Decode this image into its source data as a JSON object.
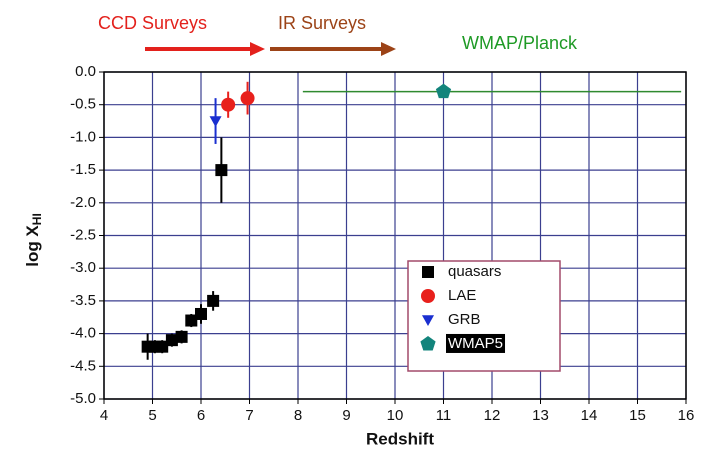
{
  "chart_data": {
    "type": "scatter",
    "xlabel": "Redshift",
    "ylabel": "log X",
    "ylabel_sub": "HI",
    "xlim": [
      4,
      16
    ],
    "xticks": [
      4,
      5,
      6,
      7,
      8,
      9,
      10,
      11,
      12,
      13,
      14,
      15,
      16
    ],
    "ylim": [
      -5,
      0
    ],
    "yticks": [
      {
        "value": 0,
        "label": "0.0"
      },
      -0.5,
      {
        "value": -1,
        "label": "-1.0"
      },
      -1.5,
      {
        "value": -2,
        "label": "-2.0"
      },
      -2.5,
      {
        "value": -3,
        "label": "-3.0"
      },
      -3.5,
      {
        "value": -4,
        "label": "-4.0"
      },
      -4.5,
      {
        "value": -5,
        "label": "-5.0"
      }
    ],
    "grid": true,
    "grid_color": "#3b3f8f",
    "annotations": [
      {
        "text": "CCD Surveys",
        "color": "#e3211c"
      },
      {
        "text": "IR Surveys",
        "color": "#9c4317"
      },
      {
        "text": "WMAP/Planck",
        "color": "#1e9a25"
      }
    ],
    "series": [
      {
        "name": "quasars",
        "color": "#000000",
        "marker": "square",
        "x": [
          4.9,
          5.05,
          5.2,
          5.4,
          5.6,
          5.8,
          6.0,
          6.25,
          6.42
        ],
        "values": [
          -4.2,
          -4.2,
          -4.2,
          -4.1,
          -4.05,
          -3.8,
          -3.7,
          -3.5,
          -1.5
        ],
        "yerr": [
          0.2,
          0.1,
          0.1,
          0.1,
          0.1,
          0.1,
          0.15,
          0.15,
          0.5
        ]
      },
      {
        "name": "LAE",
        "color": "#e8201c",
        "marker": "circle",
        "x": [
          6.56,
          6.96
        ],
        "values": [
          -0.5,
          -0.4
        ],
        "yerr": [
          0.2,
          0.25
        ]
      },
      {
        "name": "GRB",
        "color": "#1a2fd0",
        "marker": "triangle-down",
        "x": [
          6.3
        ],
        "values": [
          -0.75
        ],
        "yerr": [
          0.35
        ]
      },
      {
        "name": "WMAP5",
        "color": "#13847c",
        "marker": "pentagon",
        "x": [
          11
        ],
        "values": [
          -0.3
        ],
        "xerr": [
          [
            2.9,
            4.9
          ]
        ],
        "line_color": "#2f8a2f",
        "legend_label_background": "#000000"
      }
    ]
  }
}
